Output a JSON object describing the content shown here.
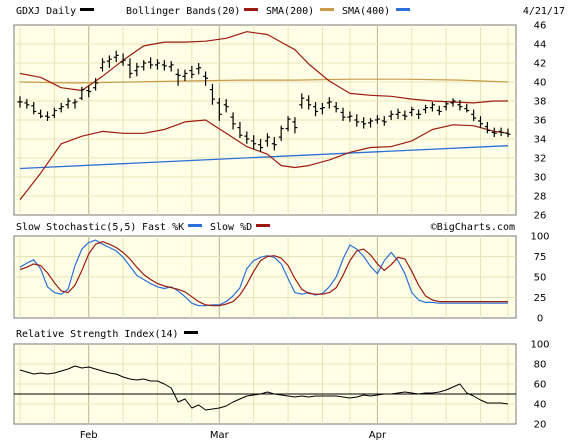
{
  "chart_data": [
    {
      "type": "line",
      "panel": "price",
      "ticker_label": "GDXJ Daily",
      "indicator_labels": [
        "Bollinger Bands(20)",
        "SMA(200)",
        "SMA(400)"
      ],
      "date": "4/21/17",
      "ylim": [
        26,
        46
      ],
      "yticks": [
        26,
        28,
        30,
        32,
        34,
        36,
        38,
        40,
        42,
        44,
        46
      ],
      "x_labels": [
        "Feb",
        "Mar",
        "Apr"
      ],
      "grid": true,
      "colors": {
        "panel_bg": "#ffffe8",
        "grid": "#e4e4b8",
        "price": "#000000",
        "bollinger": "#9c1a10",
        "sma200": "#c89a4a",
        "sma400": "#2d6fd6"
      },
      "legend_colors": [
        "#000000",
        "#9c1a10",
        "#c89a4a",
        "#2d6fd6"
      ],
      "series": [
        {
          "name": "GDXJ Daily",
          "kind": "ohlc",
          "values": [
            [
              37.9,
              38.5,
              37.3,
              37.9
            ],
            [
              37.8,
              38.2,
              37.2,
              37.6
            ],
            [
              37.5,
              37.9,
              36.6,
              36.9
            ],
            [
              36.7,
              37.1,
              36.2,
              36.4
            ],
            [
              36.4,
              36.9,
              35.9,
              36.3
            ],
            [
              36.5,
              37.3,
              36.2,
              37.0
            ],
            [
              37.2,
              37.8,
              36.8,
              37.4
            ],
            [
              37.6,
              38.3,
              37.2,
              38.0
            ],
            [
              37.8,
              38.2,
              37.2,
              37.9
            ],
            [
              38.3,
              39.5,
              38.1,
              39.2
            ],
            [
              39.1,
              39.6,
              38.4,
              39.0
            ],
            [
              39.4,
              40.4,
              39.1,
              39.9
            ],
            [
              41.5,
              42.5,
              41.1,
              42.1
            ],
            [
              42.2,
              42.8,
              41.5,
              42.4
            ],
            [
              42.6,
              43.3,
              42.1,
              42.8
            ],
            [
              42.1,
              43.0,
              41.7,
              42.3
            ],
            [
              41.8,
              42.5,
              40.4,
              40.9
            ],
            [
              41.2,
              42.0,
              40.6,
              41.6
            ],
            [
              41.6,
              42.3,
              41.2,
              42.0
            ],
            [
              42.1,
              42.6,
              41.4,
              41.8
            ],
            [
              41.8,
              42.4,
              41.3,
              42.0
            ],
            [
              41.8,
              42.3,
              41.2,
              41.7
            ],
            [
              41.6,
              42.2,
              41.1,
              41.8
            ],
            [
              40.8,
              41.4,
              39.6,
              40.7
            ],
            [
              40.6,
              41.3,
              40.1,
              40.9
            ],
            [
              41.2,
              41.7,
              40.4,
              40.8
            ],
            [
              41.4,
              42.0,
              40.8,
              41.5
            ],
            [
              40.6,
              41.1,
              39.6,
              40.4
            ],
            [
              39.2,
              39.8,
              37.6,
              38.2
            ],
            [
              37.8,
              38.3,
              35.9,
              36.6
            ],
            [
              37.6,
              38.2,
              36.8,
              37.4
            ],
            [
              36.3,
              36.8,
              35.0,
              35.6
            ],
            [
              35.2,
              35.8,
              34.1,
              34.4
            ],
            [
              34.3,
              34.8,
              33.5,
              34.0
            ],
            [
              33.8,
              34.4,
              32.9,
              33.5
            ],
            [
              33.4,
              34.0,
              32.7,
              33.1
            ],
            [
              33.8,
              34.6,
              33.2,
              34.2
            ],
            [
              33.5,
              34.2,
              32.8,
              33.4
            ],
            [
              34.2,
              35.4,
              33.8,
              35.1
            ],
            [
              35.1,
              36.4,
              34.8,
              36.1
            ],
            [
              35.8,
              36.3,
              34.6,
              35.2
            ],
            [
              37.6,
              38.8,
              37.2,
              38.3
            ],
            [
              38.1,
              38.6,
              37.1,
              37.6
            ],
            [
              37.4,
              37.9,
              36.4,
              36.9
            ],
            [
              37.2,
              37.8,
              36.6,
              37.3
            ],
            [
              37.8,
              38.4,
              37.2,
              37.9
            ],
            [
              37.4,
              37.9,
              36.8,
              37.2
            ],
            [
              36.8,
              37.3,
              35.9,
              36.3
            ],
            [
              36.3,
              36.9,
              35.8,
              36.4
            ],
            [
              36.0,
              36.6,
              35.3,
              35.8
            ],
            [
              35.8,
              36.3,
              35.1,
              35.6
            ],
            [
              35.7,
              36.2,
              35.2,
              35.9
            ],
            [
              36.0,
              36.5,
              35.6,
              36.1
            ],
            [
              35.9,
              36.4,
              35.4,
              35.8
            ],
            [
              36.4,
              37.0,
              36.0,
              36.6
            ],
            [
              36.6,
              37.2,
              36.1,
              36.8
            ],
            [
              36.5,
              37.0,
              36.0,
              36.4
            ],
            [
              36.8,
              37.4,
              36.4,
              37.1
            ],
            [
              36.6,
              37.1,
              36.1,
              36.6
            ],
            [
              37.1,
              37.6,
              36.7,
              37.3
            ],
            [
              37.3,
              37.9,
              36.9,
              37.6
            ],
            [
              37.0,
              37.5,
              36.5,
              36.9
            ],
            [
              37.4,
              38.0,
              37.0,
              37.7
            ],
            [
              37.8,
              38.3,
              37.4,
              38.0
            ],
            [
              37.6,
              38.1,
              37.0,
              37.4
            ],
            [
              37.2,
              37.7,
              36.8,
              37.0
            ],
            [
              36.6,
              37.1,
              35.9,
              36.2
            ],
            [
              35.9,
              36.4,
              35.2,
              35.6
            ],
            [
              35.3,
              35.8,
              34.6,
              34.9
            ],
            [
              34.7,
              35.2,
              34.2,
              34.6
            ],
            [
              34.8,
              35.2,
              34.3,
              34.7
            ],
            [
              34.6,
              35.1,
              34.2,
              34.5
            ]
          ]
        },
        {
          "name": "Bollinger Bands(20) upper",
          "x": [
            0,
            3,
            6,
            9,
            12,
            15,
            18,
            21,
            24,
            27,
            30,
            33,
            36,
            38,
            40,
            42,
            45,
            48,
            51,
            54,
            57,
            60,
            63,
            66,
            69,
            71
          ],
          "values": [
            40.9,
            40.5,
            39.4,
            39.1,
            40.6,
            42.3,
            43.8,
            44.2,
            44.2,
            44.3,
            44.6,
            45.3,
            45.0,
            44.2,
            43.4,
            41.9,
            40.1,
            38.8,
            38.6,
            38.5,
            38.2,
            38.0,
            37.9,
            37.8,
            38.0,
            38.0
          ]
        },
        {
          "name": "Bollinger Bands(20) lower",
          "x": [
            0,
            3,
            6,
            9,
            12,
            15,
            18,
            21,
            24,
            27,
            30,
            33,
            36,
            38,
            40,
            42,
            45,
            48,
            51,
            54,
            57,
            60,
            63,
            66,
            69,
            71
          ],
          "values": [
            27.6,
            30.4,
            33.5,
            34.3,
            34.8,
            34.6,
            34.6,
            35.0,
            35.8,
            36.0,
            34.6,
            33.2,
            32.4,
            31.2,
            31.0,
            31.2,
            31.8,
            32.6,
            33.1,
            33.2,
            33.8,
            35.0,
            35.5,
            35.4,
            34.8,
            34.6
          ]
        },
        {
          "name": "SMA(200)",
          "x": [
            0,
            8,
            16,
            24,
            32,
            40,
            48,
            56,
            64,
            71
          ],
          "values": [
            40.0,
            39.9,
            40.0,
            40.1,
            40.2,
            40.2,
            40.3,
            40.3,
            40.2,
            40.0
          ]
        },
        {
          "name": "SMA(400)",
          "x": [
            0,
            71
          ],
          "values": [
            30.9,
            33.3
          ]
        }
      ]
    },
    {
      "type": "line",
      "panel": "stochastic",
      "title": "Slow Stochastic(5,5)",
      "legend": [
        "Fast %K",
        "Slow %D"
      ],
      "ylim": [
        0,
        100
      ],
      "yticks": [
        0,
        25,
        50,
        75,
        100
      ],
      "credit": "©BigCharts.com",
      "series": [
        {
          "name": "Fast %K",
          "values": [
            62,
            67,
            71,
            60,
            38,
            31,
            29,
            35,
            64,
            84,
            92,
            95,
            90,
            86,
            82,
            74,
            63,
            52,
            47,
            42,
            38,
            36,
            38,
            33,
            26,
            18,
            15,
            15,
            16,
            16,
            20,
            27,
            37,
            60,
            70,
            74,
            76,
            74,
            66,
            48,
            31,
            29,
            31,
            28,
            30,
            38,
            50,
            72,
            89,
            84,
            75,
            63,
            54,
            70,
            80,
            70,
            54,
            31,
            22,
            19,
            19,
            18,
            18,
            18,
            18,
            18,
            18,
            18,
            18,
            18,
            18,
            18
          ]
        },
        {
          "name": "Slow %D",
          "values": [
            59,
            62,
            66,
            64,
            55,
            43,
            33,
            31,
            40,
            58,
            78,
            90,
            93,
            90,
            86,
            80,
            72,
            62,
            53,
            47,
            42,
            39,
            37,
            35,
            32,
            26,
            20,
            16,
            15,
            15,
            17,
            20,
            28,
            41,
            57,
            70,
            75,
            76,
            73,
            64,
            48,
            35,
            30,
            29,
            29,
            31,
            37,
            52,
            70,
            82,
            84,
            77,
            66,
            58,
            65,
            74,
            72,
            57,
            40,
            27,
            22,
            20,
            20,
            20,
            20,
            20,
            20,
            20,
            20,
            20,
            20,
            20
          ]
        }
      ],
      "colors": {
        "fast_k": "#2d6fd6",
        "slow_d": "#9c1a10"
      }
    },
    {
      "type": "line",
      "panel": "rsi",
      "title": "Relative Strength Index(14)",
      "ylim": [
        20,
        100
      ],
      "yticks": [
        20,
        40,
        60,
        80,
        100
      ],
      "reference_line": 50,
      "legend_colors": [
        "#000000"
      ],
      "series": [
        {
          "name": "Relative Strength Index(14)",
          "values": [
            74,
            72,
            70,
            71,
            70,
            71,
            73,
            75,
            78,
            76,
            77,
            75,
            73,
            71,
            70,
            67,
            65,
            64,
            65,
            63,
            63,
            60,
            56,
            42,
            45,
            36,
            39,
            34,
            35,
            36,
            38,
            42,
            45,
            48,
            49,
            50,
            52,
            50,
            49,
            48,
            47,
            48,
            47,
            48,
            48,
            48,
            48,
            47,
            46,
            47,
            49,
            48,
            49,
            50,
            50,
            51,
            52,
            51,
            50,
            51,
            51,
            52,
            54,
            57,
            60,
            51,
            48,
            44,
            41,
            41,
            41,
            40
          ]
        }
      ]
    }
  ]
}
